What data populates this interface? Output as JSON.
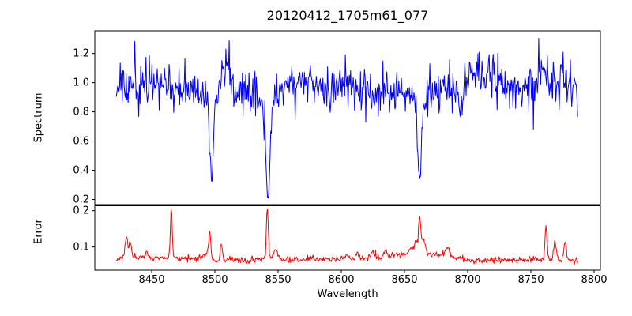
{
  "chart_data": {
    "type": "line",
    "title": "20120412_1705m61_077",
    "xlabel": "Wavelength",
    "xlim": [
      8405,
      8805
    ],
    "xticks": [
      8450,
      8500,
      8550,
      8600,
      8650,
      8700,
      8750,
      8800
    ],
    "x_range": [
      8422,
      8787
    ],
    "n_points": 700,
    "panels": [
      {
        "name": "spectrum",
        "ylabel": "Spectrum",
        "color": "#0000ff",
        "ylim": [
          0.165,
          1.355
        ],
        "yticks": [
          0.2,
          0.4,
          0.6,
          0.8,
          1.0,
          1.2
        ],
        "ytick_decimals": 1,
        "seed": 11,
        "baseline": 0.955,
        "noise_sigma": 0.07,
        "spike_prob": 0.12,
        "spike_amp": 0.2,
        "drift_rho": 0.98,
        "drift_step": 0.005,
        "clip": [
          0.21,
          1.315
        ],
        "absorption_lines": [
          {
            "center": 8497.5,
            "depth": 0.46,
            "sigma": 1.2
          },
          {
            "center": 8497.5,
            "depth": 0.13,
            "sigma": 3
          },
          {
            "center": 8542,
            "depth": 0.6,
            "sigma": 1.4
          },
          {
            "center": 8542,
            "depth": 0.18,
            "sigma": 4
          },
          {
            "center": 8662,
            "depth": 0.48,
            "sigma": 1.3
          },
          {
            "center": 8662,
            "depth": 0.14,
            "sigma": 3.5
          }
        ],
        "bumps": [
          {
            "center": 8424,
            "height": 0.06,
            "sigma": 2
          },
          {
            "center": 8509,
            "height": 0.18,
            "sigma": 3.5
          },
          {
            "center": 8704,
            "height": 0.07,
            "sigma": 3
          },
          {
            "center": 8717,
            "height": 0.15,
            "sigma": 3.5
          },
          {
            "center": 8758,
            "height": 0.09,
            "sigma": 2.5
          },
          {
            "center": 8775,
            "height": 0.07,
            "sigma": 2.5
          },
          {
            "center": 8600,
            "height": 0.06,
            "sigma": 3
          },
          {
            "center": 8560,
            "height": 0.05,
            "sigma": 3
          }
        ]
      },
      {
        "name": "error",
        "ylabel": "Error",
        "color": "#ff0000",
        "ylim": [
          0.036,
          0.2135
        ],
        "yticks": [
          0.1,
          0.2
        ],
        "ytick_decimals": 1,
        "seed": 23,
        "noise_sigma": 0.004,
        "spike_prob": 0.08,
        "spike_amp": 0.008,
        "clip": [
          0.046,
          0.205
        ],
        "baseline_points": [
          [
            8422,
            0.062
          ],
          [
            8428,
            0.072
          ],
          [
            8435,
            0.07
          ],
          [
            8450,
            0.07
          ],
          [
            8470,
            0.068
          ],
          [
            8490,
            0.07
          ],
          [
            8501,
            0.058
          ],
          [
            8512,
            0.065
          ],
          [
            8525,
            0.063
          ],
          [
            8545,
            0.068
          ],
          [
            8560,
            0.065
          ],
          [
            8580,
            0.066
          ],
          [
            8600,
            0.067
          ],
          [
            8625,
            0.07
          ],
          [
            8645,
            0.076
          ],
          [
            8662,
            0.082
          ],
          [
            8672,
            0.08
          ],
          [
            8690,
            0.072
          ],
          [
            8702,
            0.062
          ],
          [
            8720,
            0.063
          ],
          [
            8745,
            0.064
          ],
          [
            8758,
            0.067
          ],
          [
            8770,
            0.066
          ],
          [
            8787,
            0.06
          ]
        ],
        "spikes": [
          {
            "center": 8430,
            "height": 0.06,
            "sigma": 0.9
          },
          {
            "center": 8433,
            "height": 0.045,
            "sigma": 0.9
          },
          {
            "center": 8446,
            "height": 0.018,
            "sigma": 1
          },
          {
            "center": 8465.5,
            "height": 0.134,
            "sigma": 0.75
          },
          {
            "center": 8494,
            "height": 0.02,
            "sigma": 1.5
          },
          {
            "center": 8496,
            "height": 0.067,
            "sigma": 0.85
          },
          {
            "center": 8505,
            "height": 0.045,
            "sigma": 0.9
          },
          {
            "center": 8541.5,
            "height": 0.142,
            "sigma": 0.75
          },
          {
            "center": 8548,
            "height": 0.025,
            "sigma": 1.5
          },
          {
            "center": 8604,
            "height": 0.012,
            "sigma": 1.2
          },
          {
            "center": 8613,
            "height": 0.015,
            "sigma": 1.2
          },
          {
            "center": 8625,
            "height": 0.015,
            "sigma": 1.2
          },
          {
            "center": 8635,
            "height": 0.018,
            "sigma": 1.2
          },
          {
            "center": 8655,
            "height": 0.02,
            "sigma": 1.5
          },
          {
            "center": 8659,
            "height": 0.035,
            "sigma": 1.2
          },
          {
            "center": 8662,
            "height": 0.105,
            "sigma": 0.8
          },
          {
            "center": 8665,
            "height": 0.04,
            "sigma": 1.5
          },
          {
            "center": 8684,
            "height": 0.025,
            "sigma": 1.5
          },
          {
            "center": 8762,
            "height": 0.09,
            "sigma": 0.8
          },
          {
            "center": 8769,
            "height": 0.047,
            "sigma": 1
          },
          {
            "center": 8777,
            "height": 0.052,
            "sigma": 1
          }
        ]
      }
    ]
  }
}
